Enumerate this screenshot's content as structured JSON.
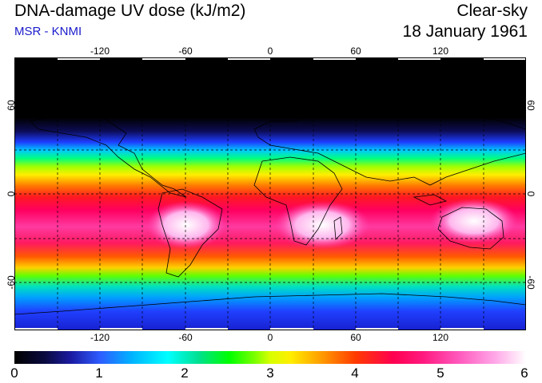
{
  "header": {
    "title": "DNA-damage UV dose (kJ/m2)",
    "subtitle": "MSR - KNMI",
    "mode": "Clear-sky",
    "date": "18 January 1961"
  },
  "axes": {
    "lon_ticks": [
      "-120",
      "-60",
      "0",
      "60",
      "120"
    ],
    "lat_ticks": [
      "60",
      "0",
      "-60"
    ]
  },
  "colorbar": {
    "labels": [
      "0",
      "1",
      "2",
      "3",
      "4",
      "5",
      "6"
    ],
    "colors": [
      "#000000",
      "#2e5cff",
      "#00ffff",
      "#00ff00",
      "#ffee00",
      "#ff3a00",
      "#ff1a80",
      "#ffffff"
    ]
  }
}
